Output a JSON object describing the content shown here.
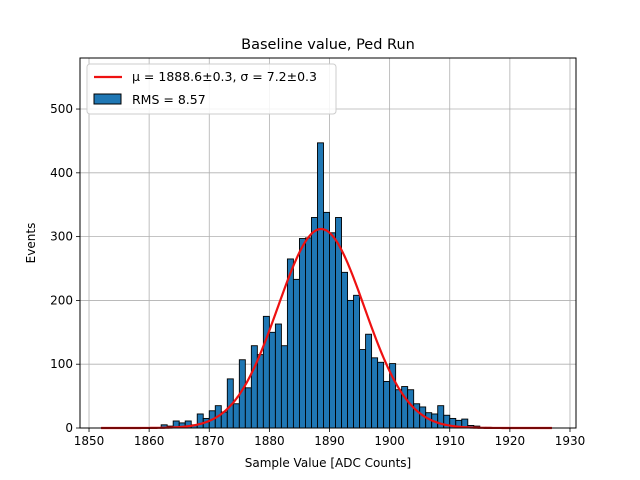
{
  "chart_data": {
    "type": "bar",
    "title": "Baseline value, Ped Run",
    "xlabel": "Sample Value [ADC Counts]",
    "ylabel": "Events",
    "xlim": [
      1848.5,
      1931
    ],
    "ylim": [
      0,
      580
    ],
    "xticks": [
      1850,
      1860,
      1870,
      1880,
      1890,
      1900,
      1910,
      1920,
      1930
    ],
    "yticks": [
      0,
      100,
      200,
      300,
      400,
      500
    ],
    "grid": true,
    "legend_position": "top-left",
    "bar_color": "#1f77b4",
    "fit_color": "#ee1111",
    "bin_width": 1,
    "legend": {
      "fit_label": "μ = 1888.6±0.3, σ = 7.2±0.3",
      "hist_label": "RMS = 8.57"
    },
    "series": [
      {
        "name": "RMS = 8.57",
        "type": "histogram",
        "bin_starts": [
          1862,
          1863,
          1864,
          1865,
          1866,
          1867,
          1868,
          1869,
          1870,
          1871,
          1872,
          1873,
          1874,
          1875,
          1876,
          1877,
          1878,
          1879,
          1880,
          1881,
          1882,
          1883,
          1884,
          1885,
          1886,
          1887,
          1888,
          1889,
          1890,
          1891,
          1892,
          1893,
          1894,
          1895,
          1896,
          1897,
          1898,
          1899,
          1900,
          1901,
          1902,
          1903,
          1904,
          1905,
          1906,
          1907,
          1908,
          1909,
          1910,
          1911,
          1912,
          1913,
          1914,
          1915,
          1916
        ],
        "values": [
          5,
          3,
          11,
          8,
          11,
          5,
          22,
          15,
          27,
          35,
          25,
          77,
          38,
          107,
          63,
          129,
          115,
          175,
          150,
          163,
          129,
          265,
          233,
          297,
          298,
          330,
          447,
          338,
          306,
          330,
          244,
          200,
          208,
          123,
          147,
          110,
          103,
          73,
          101,
          60,
          65,
          60,
          38,
          33,
          24,
          22,
          35,
          20,
          15,
          12,
          14,
          4,
          3,
          1,
          1
        ]
      },
      {
        "name": "μ = 1888.6±0.3, σ = 7.2±0.3",
        "type": "gaussian-fit",
        "x_range": [
          1852,
          1927
        ],
        "amplitude": 312,
        "mu": 1888.6,
        "sigma": 7.2
      }
    ]
  }
}
